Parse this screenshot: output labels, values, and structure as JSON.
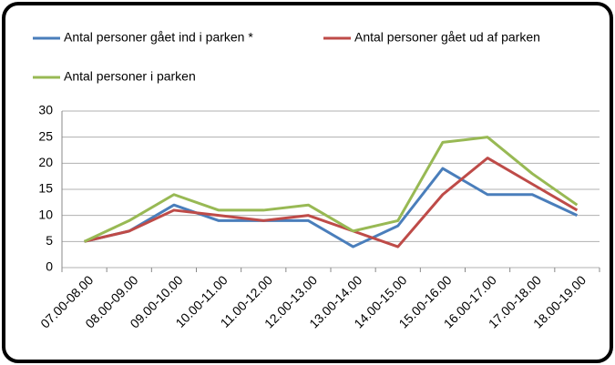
{
  "chart_data": {
    "type": "line",
    "categories": [
      "07.00-08.00",
      "08.00-09.00",
      "09.00-10.00",
      "10.00-11.00",
      "11.00-12.00",
      "12.00-13.00",
      "13.00-14.00",
      "14.00-15.00",
      "15.00-16.00",
      "16.00-17.00",
      "17.00-18.00",
      "18.00-19.00"
    ],
    "series": [
      {
        "name": "Antal personer gået ind i parken *",
        "color": "#4a7ebb",
        "values": [
          5,
          7,
          12,
          9,
          9,
          9,
          4,
          8,
          19,
          14,
          14,
          10
        ]
      },
      {
        "name": "Antal personer gået ud af parken",
        "color": "#be4b48",
        "values": [
          5,
          7,
          11,
          10,
          9,
          10,
          7,
          4,
          14,
          21,
          16,
          11
        ]
      },
      {
        "name": "Antal personer i parken",
        "color": "#98b954",
        "values": [
          5,
          9,
          14,
          11,
          11,
          12,
          7,
          9,
          24,
          25,
          18,
          12
        ]
      }
    ],
    "ylim": [
      0,
      30
    ],
    "yticks": [
      0,
      5,
      10,
      15,
      20,
      25,
      30
    ],
    "grid": true
  }
}
